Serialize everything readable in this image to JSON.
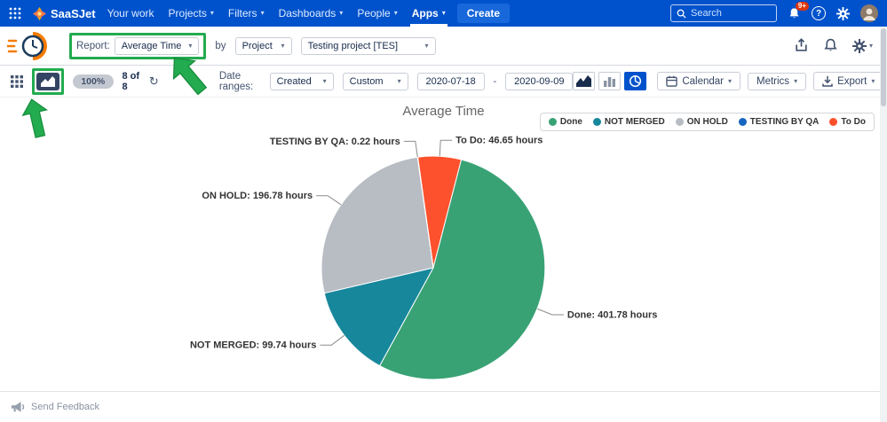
{
  "colors": {
    "header_blue": "#0052cc",
    "create_button_blue": "#1868db",
    "annotation_green": "#23ab4f",
    "notification_red": "#de350b"
  },
  "icons": {
    "chevron_down": "▾",
    "question_mark": "?",
    "refresh": "↻"
  },
  "top_nav": {
    "brand": "SaaSJet",
    "items": [
      {
        "label": "Your work",
        "active": false
      },
      {
        "label": "Projects",
        "active": false
      },
      {
        "label": "Filters",
        "active": false
      },
      {
        "label": "Dashboards",
        "active": false
      },
      {
        "label": "People",
        "active": false
      },
      {
        "label": "Apps",
        "active": true
      }
    ],
    "create_label": "Create",
    "search_placeholder": "Search",
    "notification_badge": "9+"
  },
  "report_bar": {
    "report_label": "Report:",
    "report_value": "Average Time",
    "by_label": "by",
    "group_by_value": "Project",
    "project_value": "Testing project [TES]"
  },
  "filter_bar": {
    "progress_value": "100%",
    "items_count": "8 of 8",
    "date_ranges_label": "Date ranges:",
    "date_field_value": "Created",
    "range_mode_value": "Custom",
    "date_from": "2020-07-18",
    "date_separator": "-",
    "date_to": "2020-09-09",
    "calendar_label": "Calendar",
    "metrics_label": "Metrics",
    "export_label": "Export"
  },
  "chart_data": {
    "type": "pie",
    "title": "Average Time",
    "unit": "hours",
    "start_angle_deg": -8,
    "legend_position": "top-right",
    "slices": [
      {
        "label": "To Do",
        "value": 46.65,
        "color": "#fc512c",
        "label_text": "To Do: 46.65 hours"
      },
      {
        "label": "Done",
        "value": 401.78,
        "color": "#39a275",
        "label_text": "Done: 401.78 hours"
      },
      {
        "label": "NOT MERGED",
        "value": 99.74,
        "color": "#17879c",
        "label_text": "NOT MERGED: 99.74 hours"
      },
      {
        "label": "ON HOLD",
        "value": 196.78,
        "color": "#b8bdc4",
        "label_text": "ON HOLD: 196.78 hours"
      },
      {
        "label": "TESTING BY QA",
        "value": 0.22,
        "color": "#1665c0",
        "label_text": "TESTING BY QA: 0.22 hours"
      }
    ],
    "legend_order": [
      1,
      2,
      3,
      4,
      0
    ]
  },
  "footer": {
    "feedback_label": "Send Feedback"
  }
}
